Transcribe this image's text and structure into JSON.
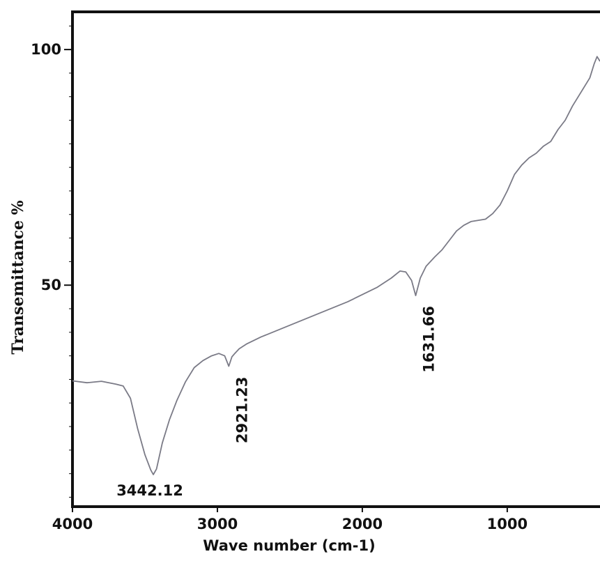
{
  "chart_data": {
    "type": "line",
    "title": "",
    "xlabel": "Wave number (cm-1)",
    "ylabel": "Transemittance %",
    "xlim": [
      4000,
      360
    ],
    "ylim": [
      3,
      108
    ],
    "x_ticks": [
      {
        "value": 4000,
        "label": "4000"
      },
      {
        "value": 3000,
        "label": "3000"
      },
      {
        "value": 2000,
        "label": "2000"
      },
      {
        "value": 1000,
        "label": "1000"
      }
    ],
    "y_ticks": [
      {
        "value": 100,
        "label": "100"
      },
      {
        "value": 50,
        "label": "50"
      }
    ],
    "grid": false,
    "line_color": "#7a7a86",
    "series": [
      {
        "x": [
          4000,
          3900,
          3800,
          3700,
          3650,
          3600,
          3550,
          3500,
          3460,
          3442.12,
          3420,
          3380,
          3330,
          3280,
          3220,
          3160,
          3100,
          3040,
          2990,
          2950,
          2921.23,
          2900,
          2880,
          2850,
          2800,
          2700,
          2500,
          2300,
          2100,
          1900,
          1800,
          1740,
          1700,
          1660,
          1631.66,
          1600,
          1560,
          1500,
          1450,
          1400,
          1350,
          1300,
          1250,
          1150,
          1100,
          1050,
          1000,
          950,
          900,
          850,
          800,
          750,
          700,
          650,
          600,
          550,
          500,
          460,
          430,
          400,
          380,
          360
        ],
        "y": [
          29.7,
          29.3,
          29.6,
          29.0,
          28.6,
          26.0,
          19.5,
          14.0,
          10.8,
          9.8,
          11.0,
          16.5,
          21.5,
          25.5,
          29.5,
          32.5,
          34.0,
          35.0,
          35.5,
          35.0,
          32.8,
          34.8,
          35.5,
          36.5,
          37.5,
          39.0,
          41.5,
          44.0,
          46.5,
          49.5,
          51.5,
          53.0,
          52.8,
          51.0,
          47.8,
          51.5,
          54.0,
          56.0,
          57.5,
          59.5,
          61.5,
          62.7,
          63.5,
          64.0,
          65.2,
          67.0,
          70.0,
          73.5,
          75.5,
          77.0,
          78.0,
          79.5,
          80.5,
          83.0,
          85.0,
          88.0,
          90.5,
          92.5,
          94.0,
          97.0,
          98.5,
          97.5
        ]
      }
    ],
    "annotations": [
      {
        "text": "3442.12",
        "x": 3442.12,
        "y": 9.8,
        "orientation": "horizontal"
      },
      {
        "text": "2921.23",
        "x": 2921.23,
        "y": 32.8,
        "orientation": "vertical"
      },
      {
        "text": "1631.66",
        "x": 1631.66,
        "y": 47.8,
        "orientation": "vertical"
      }
    ]
  }
}
